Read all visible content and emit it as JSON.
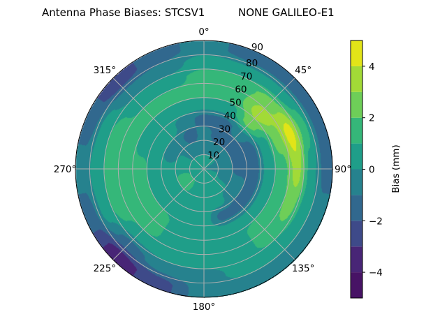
{
  "title": "Antenna Phase Biases: STCSV1          NONE GALILEO-E1",
  "chart_data": {
    "type": "contour",
    "projection": "polar",
    "theta_direction": "clockwise",
    "theta_zero": "north",
    "title": "Antenna Phase Biases: STCSV1          NONE GALILEO-E1",
    "angle_ticks": [
      0,
      45,
      90,
      135,
      180,
      225,
      270,
      315
    ],
    "angle_labels": [
      "0°",
      "45°",
      "90°",
      "135°",
      "180°",
      "225°",
      "270°",
      "315°"
    ],
    "radial_ticks": [
      10,
      20,
      30,
      40,
      50,
      60,
      70,
      80,
      90
    ],
    "radial_labels": [
      "10",
      "20",
      "30",
      "40",
      "50",
      "60",
      "70",
      "80",
      "90"
    ],
    "rlim": [
      0,
      90
    ],
    "grid": true,
    "levels": [
      -5,
      -4,
      -3,
      -2,
      -1,
      0,
      1,
      2,
      3,
      4,
      5
    ],
    "colormap": "viridis",
    "level_colors": [
      "#471365",
      "#482576",
      "#3e4a89",
      "#31688e",
      "#26828e",
      "#1f9e89",
      "#35b779",
      "#6ece58",
      "#a2da37",
      "#e2e418"
    ],
    "colorbar": {
      "label": "Bias (mm)",
      "ticks": [
        -4,
        -2,
        0,
        2,
        4
      ],
      "tick_labels": [
        "−4",
        "−2",
        "0",
        "2",
        "4"
      ],
      "range": [
        -5,
        5
      ]
    },
    "azimuth": [
      0,
      22.5,
      45,
      67.5,
      90,
      112.5,
      135,
      157.5,
      180,
      202.5,
      225,
      247.5,
      270,
      292.5,
      315,
      337.5
    ],
    "zenith": [
      5,
      15,
      25,
      35,
      45,
      55,
      65,
      75,
      85
    ],
    "values": [
      [
        0.5,
        -0.5,
        -0.5,
        -1.5,
        0.5,
        1.5,
        1.5,
        0.5,
        -0.5
      ],
      [
        0.5,
        -0.5,
        -1.5,
        -1.5,
        0.5,
        1.5,
        1.5,
        0.5,
        -1.5
      ],
      [
        0.5,
        -0.5,
        -1.5,
        -0.5,
        2.5,
        3.5,
        2.5,
        0.5,
        -1.5
      ],
      [
        -0.5,
        -0.5,
        -1.5,
        -1.5,
        0.5,
        2.5,
        4.5,
        1.5,
        -1.5
      ],
      [
        -0.5,
        -0.5,
        -1.5,
        -1.5,
        0.5,
        1.5,
        3.5,
        0.5,
        -1.5
      ],
      [
        0.5,
        -0.5,
        -0.5,
        -1.5,
        0.5,
        1.5,
        2.5,
        0.5,
        -0.5
      ],
      [
        0.5,
        0.5,
        -0.5,
        -1.5,
        0.5,
        1.5,
        1.5,
        0.5,
        -0.5
      ],
      [
        0.5,
        0.5,
        0.5,
        -1.5,
        0.5,
        0.5,
        0.5,
        0.5,
        -0.5
      ],
      [
        0.5,
        0.5,
        0.5,
        0.5,
        0.5,
        0.5,
        0.5,
        -0.5,
        -0.5
      ],
      [
        0.5,
        0.5,
        0.5,
        0.5,
        0.5,
        0.5,
        0.5,
        -0.5,
        -2.5
      ],
      [
        0.5,
        1.5,
        0.5,
        0.5,
        1.5,
        1.5,
        0.5,
        -1.5,
        -3.5
      ],
      [
        0.5,
        1.5,
        0.5,
        0.5,
        1.5,
        1.5,
        1.5,
        0.5,
        -1.5
      ],
      [
        0.5,
        0.5,
        0.5,
        0.5,
        1.5,
        1.5,
        1.5,
        0.5,
        -0.5
      ],
      [
        0.5,
        0.5,
        -0.5,
        0.5,
        0.5,
        1.5,
        1.5,
        0.5,
        -1.5
      ],
      [
        0.5,
        -0.5,
        -0.5,
        0.5,
        0.5,
        1.5,
        0.5,
        -0.5,
        -2.5
      ],
      [
        0.5,
        -0.5,
        -1.5,
        -0.5,
        0.5,
        1.5,
        0.5,
        -0.5,
        -1.5
      ]
    ]
  }
}
